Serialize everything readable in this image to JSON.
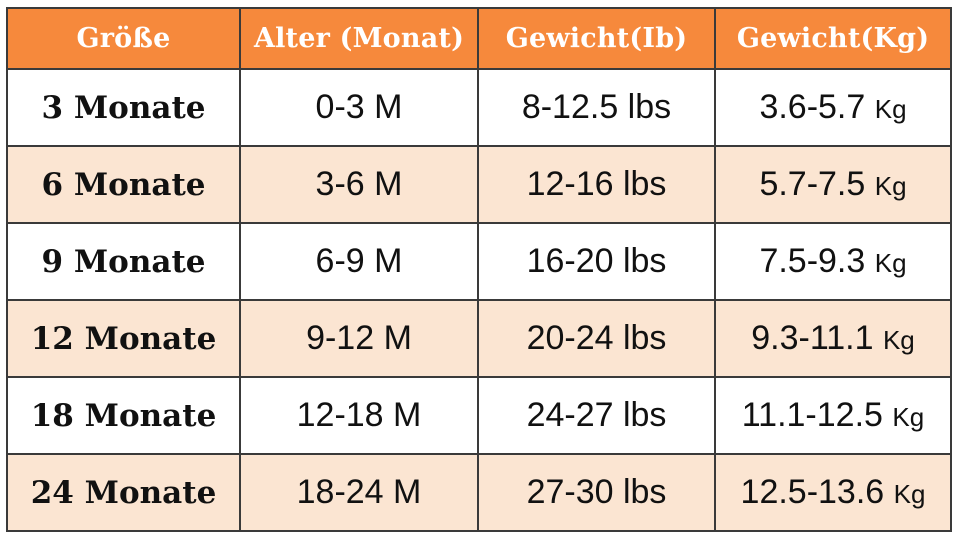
{
  "table": {
    "headers": [
      "Größe",
      "Alter (Monat)",
      "Gewicht(Ib)",
      "Gewicht(Kg)"
    ],
    "rows": [
      {
        "size": "3 Monate",
        "age": "0-3 M",
        "weight_lb": "8-12.5 lbs",
        "weight_kg_value": "3.6-5.7",
        "weight_kg_unit": "Kg"
      },
      {
        "size": "6 Monate",
        "age": "3-6 M",
        "weight_lb": "12-16 lbs",
        "weight_kg_value": "5.7-7.5",
        "weight_kg_unit": "Kg"
      },
      {
        "size": "9 Monate",
        "age": "6-9 M",
        "weight_lb": "16-20 lbs",
        "weight_kg_value": "7.5-9.3",
        "weight_kg_unit": "Kg"
      },
      {
        "size": "12 Monate",
        "age": "9-12 M",
        "weight_lb": "20-24 lbs",
        "weight_kg_value": "9.3-11.1",
        "weight_kg_unit": "Kg"
      },
      {
        "size": "18 Monate",
        "age": "12-18 M",
        "weight_lb": "24-27 lbs",
        "weight_kg_value": "11.1-12.5",
        "weight_kg_unit": "Kg"
      },
      {
        "size": "24 Monate",
        "age": "18-24 M",
        "weight_lb": "27-30 lbs",
        "weight_kg_value": "12.5-13.6",
        "weight_kg_unit": "Kg"
      }
    ]
  },
  "colors": {
    "header_bg": "#f6893c",
    "header_text": "#ffffff",
    "alt_row_bg": "#fbe5d2",
    "row_bg": "#ffffff",
    "border": "#3a3a3a"
  }
}
